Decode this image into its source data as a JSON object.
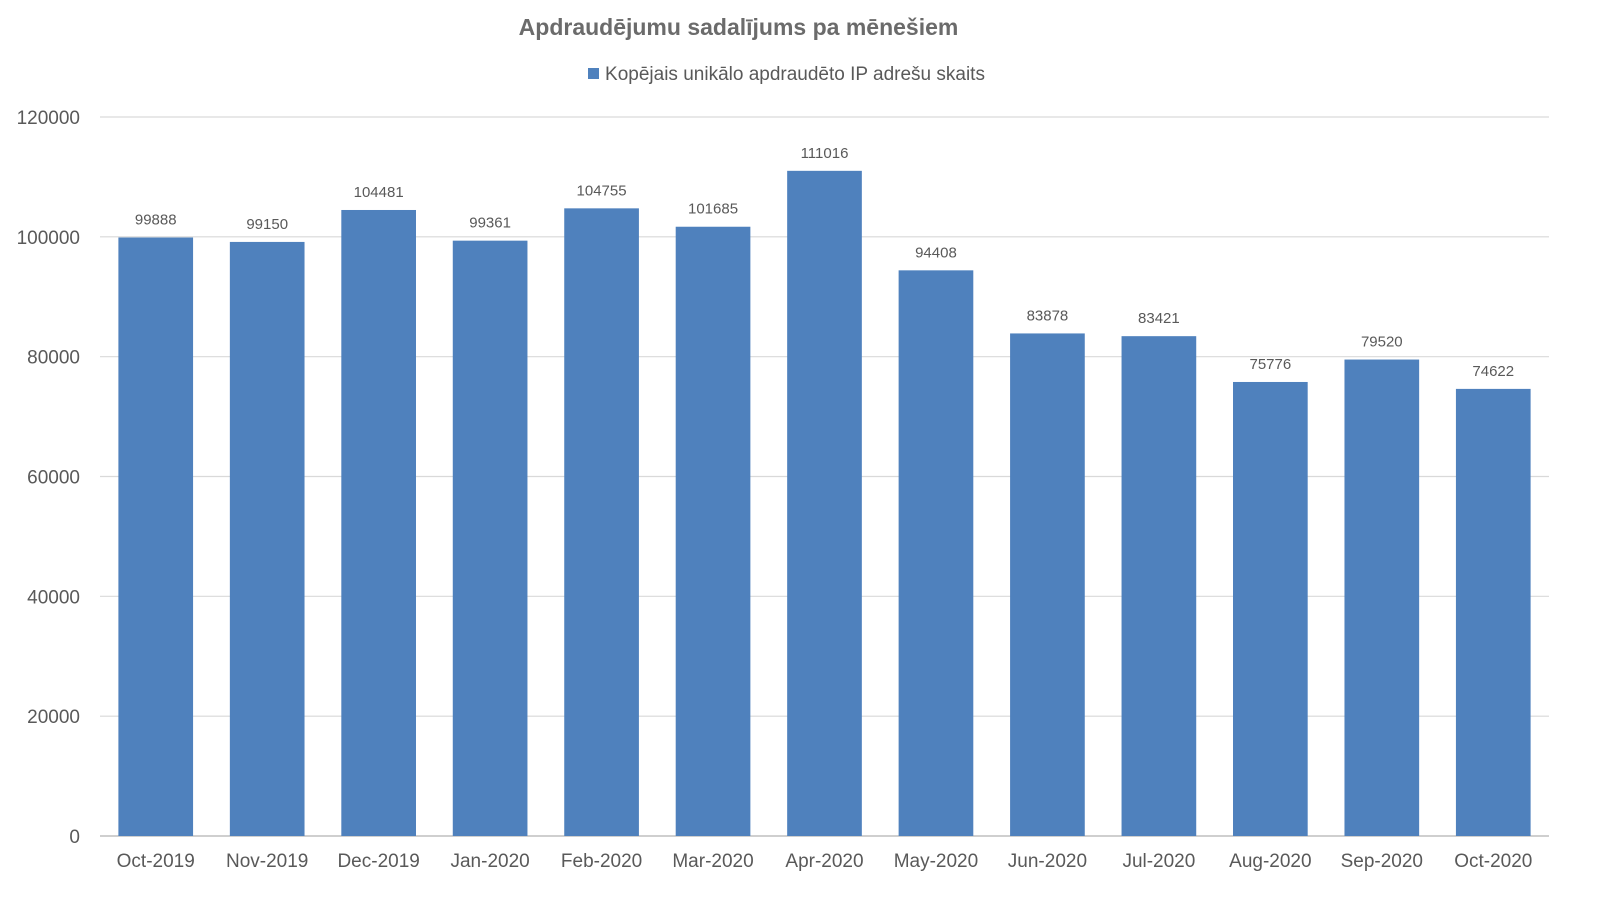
{
  "chart_data": {
    "type": "bar",
    "title": "Apdraudējumu sadalījums pa mēnešiem",
    "xlabel": "",
    "ylabel": "",
    "categories": [
      "Oct-2019",
      "Nov-2019",
      "Dec-2019",
      "Jan-2020",
      "Feb-2020",
      "Mar-2020",
      "Apr-2020",
      "May-2020",
      "Jun-2020",
      "Jul-2020",
      "Aug-2020",
      "Sep-2020",
      "Oct-2020"
    ],
    "series": [
      {
        "name": "Kopējais unikālo apdraudēto IP adrešu skaits",
        "color": "#4f81bd",
        "values": [
          99888,
          99150,
          104481,
          99361,
          104755,
          101685,
          111016,
          94408,
          83878,
          83421,
          75776,
          79520,
          74622
        ]
      }
    ],
    "ylim": [
      0,
      120000
    ],
    "yticks": [
      0,
      20000,
      40000,
      60000,
      80000,
      100000,
      120000
    ],
    "grid": "horizontal",
    "legend_position": "top-center",
    "data_labels": true
  }
}
